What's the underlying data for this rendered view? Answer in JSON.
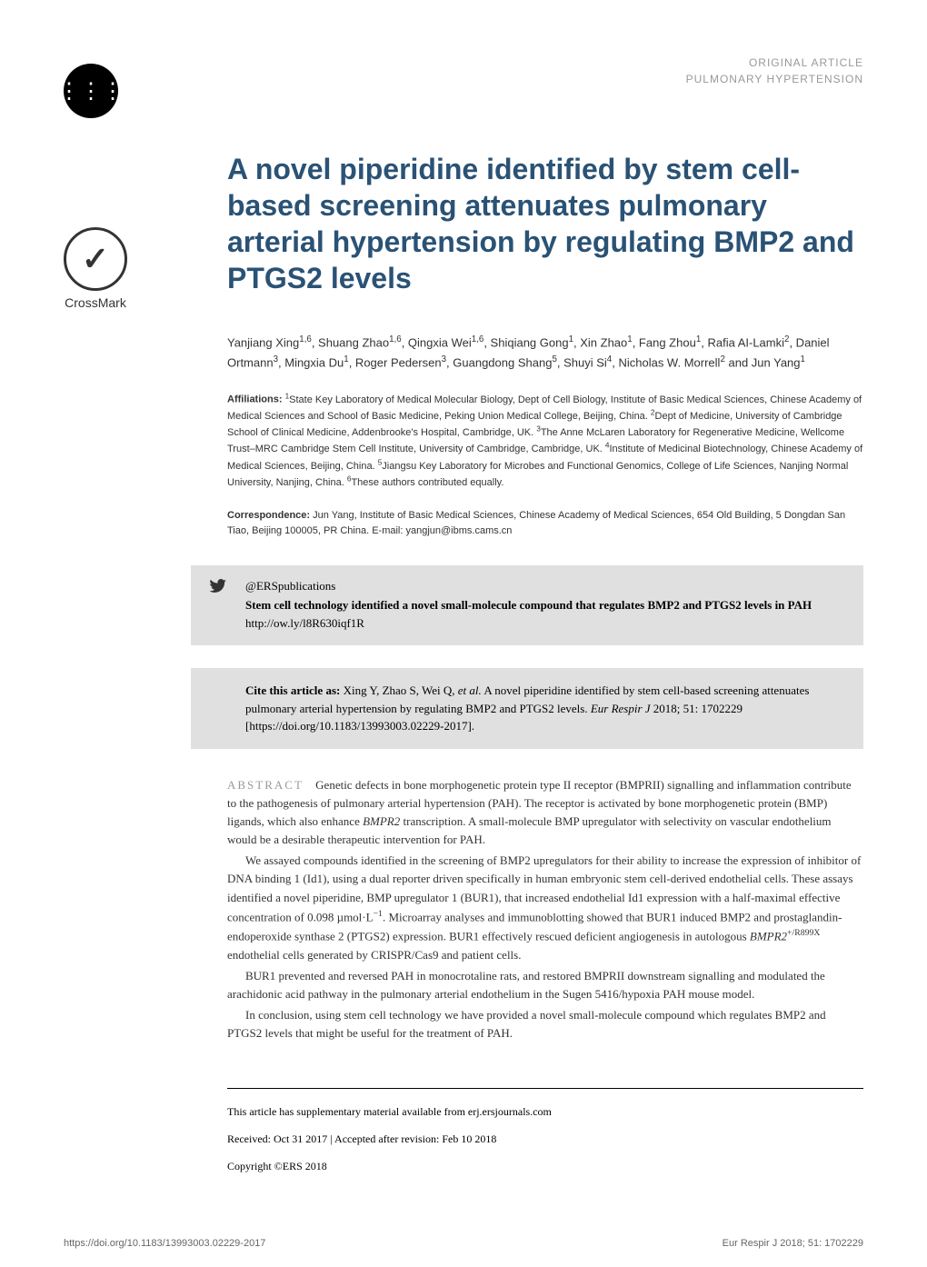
{
  "header": {
    "category_main": "ORIGINAL ARTICLE",
    "category_sub": "PULMONARY HYPERTENSION"
  },
  "crossmark": {
    "label": "CrossMark"
  },
  "title": "A novel piperidine identified by stem cell-based screening attenuates pulmonary arterial hypertension by regulating BMP2 and PTGS2 levels",
  "authors_html": "Yanjiang Xing<sup>1,6</sup>, Shuang Zhao<sup>1,6</sup>, Qingxia Wei<sup>1,6</sup>, Shiqiang Gong<sup>1</sup>, Xin Zhao<sup>1</sup>, Fang Zhou<sup>1</sup>, Rafia AI-Lamki<sup>2</sup>, Daniel Ortmann<sup>3</sup>, Mingxia Du<sup>1</sup>, Roger Pedersen<sup>3</sup>, Guangdong Shang<sup>5</sup>, Shuyi Si<sup>4</sup>, Nicholas W. Morrell<sup>2</sup> and Jun Yang<sup>1</sup>",
  "affiliations": {
    "label": "Affiliations: ",
    "text_html": "<sup>1</sup>State Key Laboratory of Medical Molecular Biology, Dept of Cell Biology, Institute of Basic Medical Sciences, Chinese Academy of Medical Sciences and School of Basic Medicine, Peking Union Medical College, Beijing, China. <sup>2</sup>Dept of Medicine, University of Cambridge School of Clinical Medicine, Addenbrooke's Hospital, Cambridge, UK. <sup>3</sup>The Anne McLaren Laboratory for Regenerative Medicine, Wellcome Trust–MRC Cambridge Stem Cell Institute, University of Cambridge, Cambridge, UK. <sup>4</sup>Institute of Medicinal Biotechnology, Chinese Academy of Medical Sciences, Beijing, China. <sup>5</sup>Jiangsu Key Laboratory for Microbes and Functional Genomics, College of Life Sciences, Nanjing Normal University, Nanjing, China. <sup>6</sup>These authors contributed equally."
  },
  "correspondence": {
    "label": "Correspondence: ",
    "text": "Jun Yang, Institute of Basic Medical Sciences, Chinese Academy of Medical Sciences, 654 Old Building, 5 Dongdan San Tiao, Beijing 100005, PR China. E-mail: yangjun@ibms.cams.cn"
  },
  "twitter": {
    "handle": "@ERSpublications",
    "text_bold": "Stem cell technology identified a novel small-molecule compound that regulates BMP2 and PTGS2 levels in PAH ",
    "link": "http://ow.ly/l8R630iqf1R"
  },
  "cite": {
    "label": "Cite this article as: ",
    "text_html": "Xing Y, Zhao S, Wei Q, <span class=\"italic\">et al.</span> A novel piperidine identified by stem cell-based screening attenuates pulmonary arterial hypertension by regulating BMP2 and PTGS2 levels. <span class=\"italic\">Eur Respir J</span> 2018; 51: 1702229 [https://doi.org/10.1183/13993003.02229-2017]."
  },
  "abstract": {
    "label": "ABSTRACT",
    "paragraphs": [
      "Genetic defects in bone morphogenetic protein type II receptor (BMPRII) signalling and inflammation contribute to the pathogenesis of pulmonary arterial hypertension (PAH). The receptor is activated by bone morphogenetic protein (BMP) ligands, which also enhance <span class=\"italic\">BMPR2</span> transcription. A small-molecule BMP upregulator with selectivity on vascular endothelium would be a desirable therapeutic intervention for PAH.",
      "We assayed compounds identified in the screening of BMP2 upregulators for their ability to increase the expression of inhibitor of DNA binding 1 (Id1), using a dual reporter driven specifically in human embryonic stem cell-derived endothelial cells. These assays identified a novel piperidine, BMP upregulator 1 (BUR1), that increased endothelial Id1 expression with a half-maximal effective concentration of 0.098 µmol·L<sup>−1</sup>. Microarray analyses and immunoblotting showed that BUR1 induced BMP2 and prostaglandin-endoperoxide synthase 2 (PTGS2) expression. BUR1 effectively rescued deficient angiogenesis in autologous <span class=\"italic\">BMPR2</span><sup>+/R899X</sup> endothelial cells generated by CRISPR/Cas9 and patient cells.",
      "BUR1 prevented and reversed PAH in monocrotaline rats, and restored BMPRII downstream signalling and modulated the arachidonic acid pathway in the pulmonary arterial endothelium in the Sugen 5416/hypoxia PAH mouse model.",
      "In conclusion, using stem cell technology we have provided a novel small-molecule compound which regulates BMP2 and PTGS2 levels that might be useful for the treatment of PAH."
    ]
  },
  "footer_notes": {
    "supplementary": "This article has supplementary material available from erj.ersjournals.com",
    "received": "Received: Oct 31 2017 | Accepted after revision: Feb 10 2018",
    "copyright": "Copyright ©ERS 2018"
  },
  "page_footer": {
    "doi": "https://doi.org/10.1183/13993003.02229-2017",
    "journal": "Eur Respir J 2018; 51: 1702229"
  },
  "colors": {
    "title_color": "#2a5275",
    "category_color": "#999999",
    "body_text": "#333333",
    "highlight_bg": "#e0e0e0",
    "background": "#ffffff",
    "footer_text": "#666666"
  },
  "typography": {
    "title_fontsize": 32,
    "author_fontsize": 13,
    "affiliation_fontsize": 11,
    "body_fontsize": 13,
    "footer_fontsize": 12
  }
}
